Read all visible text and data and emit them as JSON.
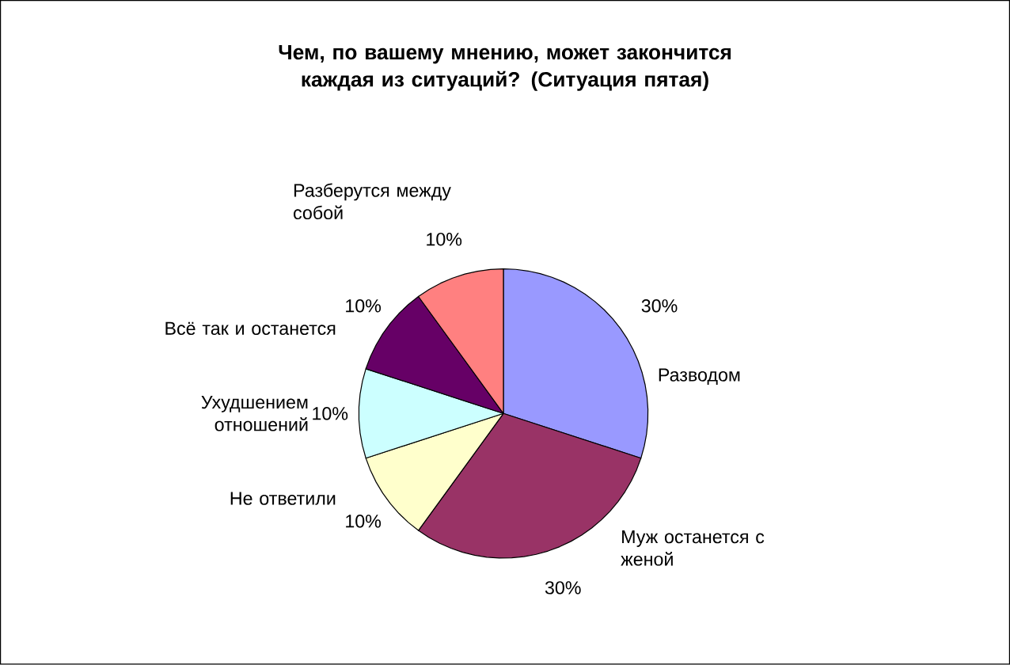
{
  "chart_data": {
    "type": "pie",
    "title": "Чем, по вашему мнению, может закончится каждая из ситуаций? (Ситуация пятая)",
    "categories": [
      "Разводом",
      "Муж останется с женой",
      "Не ответили",
      "Ухудшением отношений",
      "Всё так и останется",
      "Разберутся между собой"
    ],
    "values": [
      30,
      30,
      10,
      10,
      10,
      10
    ],
    "value_labels": [
      "30%",
      "30%",
      "10%",
      "10%",
      "10%",
      "10%"
    ],
    "colors": [
      "#9999ff",
      "#993366",
      "#ffffcc",
      "#ccffff",
      "#660066",
      "#ff8080"
    ]
  }
}
